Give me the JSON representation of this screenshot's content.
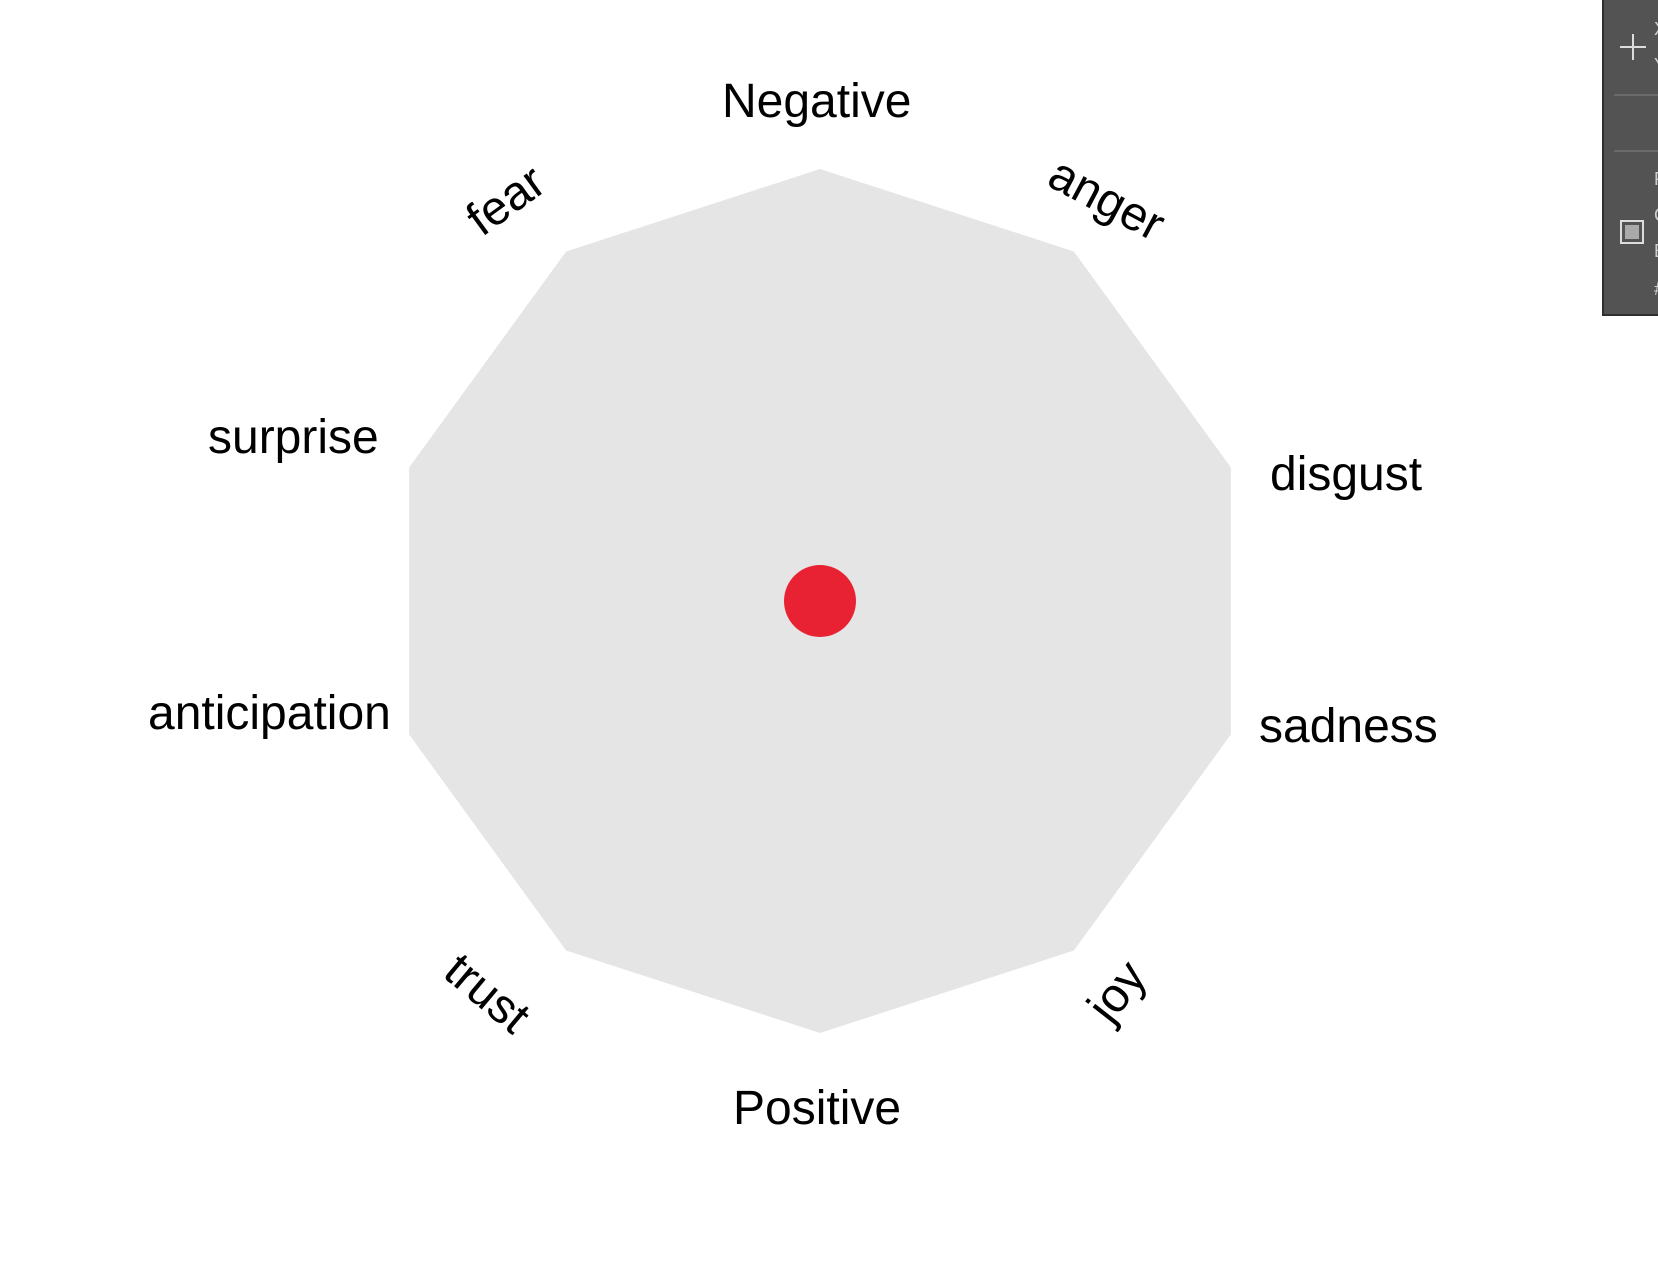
{
  "diagram": {
    "polygon_color": "#e5e5e5",
    "marker_color": "#e82232",
    "labels": [
      {
        "id": "negative",
        "text": "Negative"
      },
      {
        "id": "anger",
        "text": "anger"
      },
      {
        "id": "disgust",
        "text": "disgust"
      },
      {
        "id": "sadness",
        "text": "sadness"
      },
      {
        "id": "joy",
        "text": "joy"
      },
      {
        "id": "positive",
        "text": "Positive"
      },
      {
        "id": "trust",
        "text": "trust"
      },
      {
        "id": "anticipation",
        "text": "anticipation"
      },
      {
        "id": "surprise",
        "text": "surprise"
      },
      {
        "id": "fear",
        "text": "fear"
      }
    ]
  },
  "info_panel": {
    "background": "#535353",
    "x_label": "X",
    "y_label": "Y",
    "row_1": "F",
    "row_2": "C",
    "row_3": "E",
    "row_4": "#",
    "icons": [
      "crosshair-icon",
      "color-swatch-icon"
    ]
  }
}
